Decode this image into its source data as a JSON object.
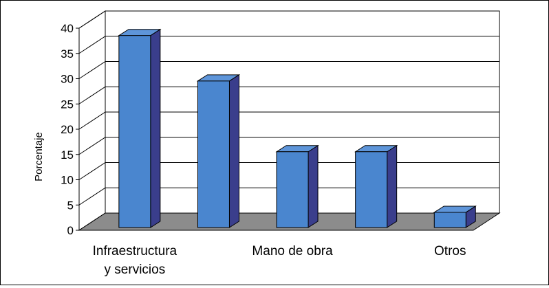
{
  "chart_data": {
    "type": "bar",
    "categories": [
      "Infraestructura\ny servicios",
      "",
      "Mano de obra",
      "",
      "Otros"
    ],
    "values": [
      38,
      29,
      15,
      15,
      3
    ],
    "ylabel": "Porcentaje",
    "xlabel": "",
    "ylim": [
      0,
      40
    ],
    "yticks": [
      0,
      5,
      10,
      15,
      20,
      25,
      30,
      35,
      40
    ],
    "grid": true,
    "legend": "none",
    "colors": {
      "bar_front": "#4A86CF",
      "bar_side": "#3A3E8C",
      "bar_top": "#5E95D9",
      "floor": "#8C8C8C",
      "grid": "#000000"
    }
  }
}
